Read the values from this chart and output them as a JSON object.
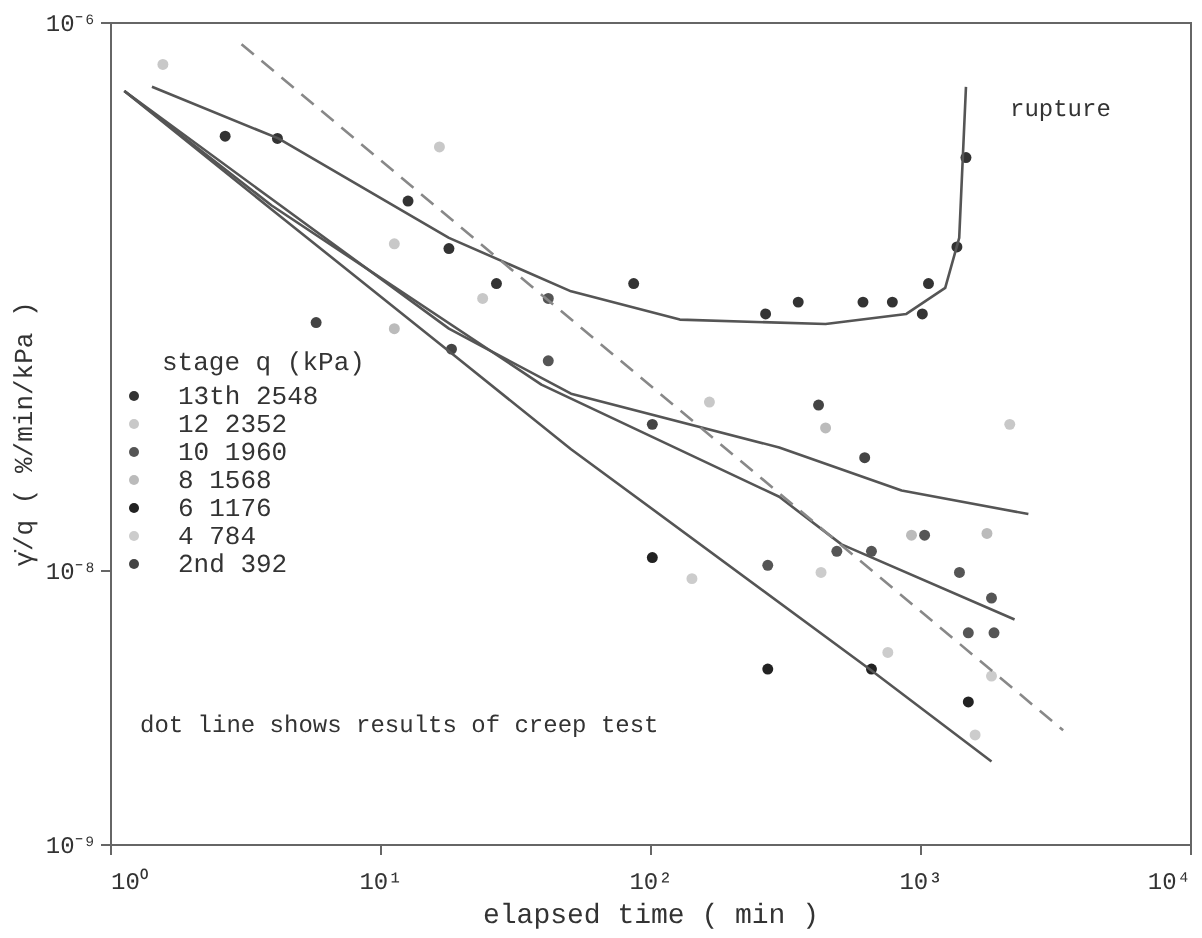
{
  "chart_data": {
    "type": "scatter",
    "xlabel": "elapsed time  ( min )",
    "ylabel": "γ̇/q  ( %/min/kPa )",
    "legend_title": "stage   q (kPa)",
    "log": "xy",
    "grid": false,
    "legend": "bottom left",
    "marker": "circle",
    "xlim": [
      1,
      10000
    ],
    "ylim": [
      1e-09,
      1e-06
    ],
    "xticks": [
      {
        "value": 1,
        "label": "10⁰"
      },
      {
        "value": 10,
        "label": "10¹"
      },
      {
        "value": 100,
        "label": "10²"
      },
      {
        "value": 1000,
        "label": "10³"
      },
      {
        "value": 10000,
        "label": "10⁴"
      }
    ],
    "yticks": [
      {
        "value": 1e-09,
        "label": "10⁻⁹"
      },
      {
        "value": 1e-08,
        "label": "10⁻⁸"
      },
      {
        "value": 1e-06,
        "label": "10⁻⁶"
      }
    ],
    "annotations": [
      "rupture",
      "dot line shows results of creep test"
    ],
    "series": [
      {
        "name": "13th   2548",
        "color": "#333333",
        "x": [
          2.67,
          4.17,
          12.7,
          18,
          27,
          87,
          268,
          354,
          615,
          790,
          1020,
          1075,
          1370,
          1480
        ],
        "values": [
          3.83e-07,
          3.76e-07,
          2.22e-07,
          1.49e-07,
          1.11e-07,
          1.11e-07,
          8.6e-08,
          9.5e-08,
          9.5e-08,
          9.5e-08,
          8.6e-08,
          1.11e-07,
          1.51e-07,
          3.2e-07
        ]
      },
      {
        "name": "12     2352",
        "color": "#c8c8c8",
        "x": [
          1.57,
          16.6,
          11.3,
          24,
          166,
          2150
        ],
        "values": [
          7e-07,
          3.5e-07,
          1.55e-07,
          9.8e-08,
          4.1e-08,
          3.4e-08
        ]
      },
      {
        "name": "10     1960",
        "color": "#555555",
        "x": [
          273,
          492,
          661,
          1040,
          1400,
          1840,
          1510,
          1880,
          42,
          42
        ],
        "values": [
          1.04e-08,
          1.17e-08,
          1.17e-08,
          1.34e-08,
          9.8e-09,
          7.9e-09,
          5.9e-09,
          5.9e-09,
          9.8e-08,
          5.8e-08
        ]
      },
      {
        "name": " 8     1568",
        "color": "#bbbbbb",
        "x": [
          11.3,
          447,
          930,
          1770
        ],
        "values": [
          7.6e-08,
          3.3e-08,
          1.34e-08,
          1.36e-08
        ]
      },
      {
        "name": " 6     1176",
        "color": "#222222",
        "x": [
          102,
          273,
          661,
          1510
        ],
        "values": [
          1.11e-08,
          4.35e-09,
          4.35e-09,
          3.3e-09
        ]
      },
      {
        "name": " 4      784",
        "color": "#cccccc",
        "x": [
          143,
          430,
          760,
          1840,
          1600
        ],
        "values": [
          9.3e-09,
          9.8e-09,
          5e-09,
          4.1e-09,
          2.5e-09
        ]
      },
      {
        "name": " 2nd    392",
        "color": "#444444",
        "x": [
          5.8,
          18.4,
          102,
          421,
          624
        ],
        "values": [
          8e-08,
          6.4e-08,
          3.4e-08,
          4e-08,
          2.57e-08
        ]
      },
      {
        "type": "line",
        "marker": "none",
        "color": "#555555",
        "x": [
          1.43,
          4.2,
          18,
          51,
          129,
          447,
          890,
          1240,
          1397,
          1480
        ],
        "values": [
          5.8e-07,
          3.76e-07,
          1.63e-07,
          1.04e-07,
          8.2e-08,
          7.9e-08,
          8.6e-08,
          1.07e-07,
          1.63e-07,
          5.8e-07
        ]
      },
      {
        "type": "line",
        "marker": "none",
        "color": "#555555",
        "x": [
          1.13,
          3.97,
          18,
          51,
          301,
          855,
          2520
        ],
        "values": [
          5.6e-07,
          2.26e-07,
          7.6e-08,
          4.4e-08,
          2.8e-08,
          1.95e-08,
          1.6e-08
        ]
      },
      {
        "type": "line",
        "marker": "none",
        "color": "#555555",
        "x": [
          1.13,
          3.97,
          39.6,
          301,
          512,
          2240
        ],
        "values": [
          5.6e-07,
          2.14e-07,
          4.75e-08,
          1.85e-08,
          1.24e-08,
          6.6e-09
        ]
      },
      {
        "type": "line",
        "marker": "none",
        "color": "#555555",
        "x": [
          1.13,
          3.97,
          19.1,
          51,
          661,
          1840
        ],
        "values": [
          5.6e-07,
          2.07e-07,
          6e-08,
          2.76e-08,
          4.3e-09,
          2e-09
        ]
      },
      {
        "type": "line",
        "marker": "none",
        "color": "#888888",
        "line_style": "dashed",
        "x": [
          3.07,
          3390
        ],
        "values": [
          8.3e-07,
          2.6e-09
        ]
      }
    ]
  }
}
